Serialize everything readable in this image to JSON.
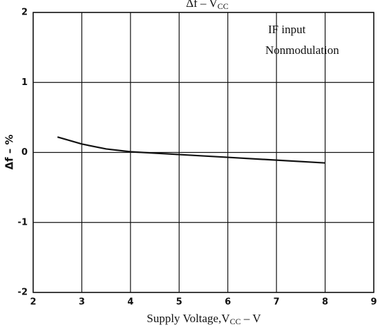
{
  "chart_data": {
    "type": "line",
    "title": {
      "text": "Δf  –  V",
      "sub": "CC"
    },
    "xlabel": {
      "text": "Supply Voltage,V",
      "sub": "CC",
      "tail": " – V"
    },
    "ylabel": "Δf  –  %",
    "annotations": [
      "IF input",
      "Nonmodulation"
    ],
    "x": [
      2.5,
      3,
      3.5,
      4,
      5,
      6,
      7,
      8
    ],
    "series": [
      {
        "color": "#111111",
        "values": [
          0.22,
          0.12,
          0.05,
          0.01,
          -0.03,
          -0.07,
          -0.11,
          -0.15
        ]
      }
    ],
    "xlim": [
      2,
      9
    ],
    "xticks": [
      2,
      3,
      4,
      5,
      6,
      7,
      8,
      9
    ],
    "ylim": [
      -2,
      2
    ],
    "yticks": [
      -2,
      -1,
      0,
      1,
      2
    ],
    "grid": true
  }
}
